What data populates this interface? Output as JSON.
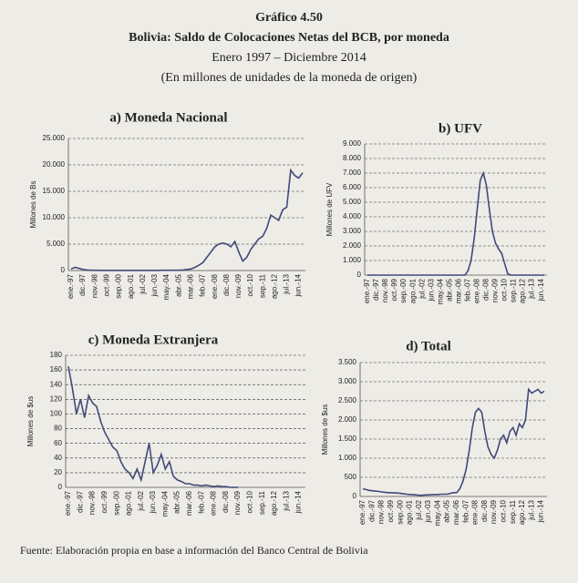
{
  "header": {
    "title": "Gráfico 4.50",
    "subtitle": "Bolivia: Saldo de Colocaciones Netas del BCB, por moneda",
    "period": "Enero 1997 – Diciembre 2014",
    "units": "(En millones de unidades de la moneda de origen)"
  },
  "source": "Fuente: Elaboración propia en base a información del Banco Central de Bolivia",
  "chart_data": [
    {
      "type": "line",
      "title": "a) Moneda Nacional",
      "y_label": "Millones de Bs",
      "color": "#3f4a7a",
      "grid": true,
      "categories": [
        "ene.-97",
        null,
        null,
        "dic.-97",
        null,
        null,
        "nov.-98",
        null,
        null,
        "oct.-99",
        null,
        null,
        "sep.-00",
        null,
        null,
        "ago.-01",
        null,
        null,
        "jul.-02",
        null,
        null,
        "jun.-03",
        null,
        null,
        "may.-04",
        null,
        null,
        "abr.-05",
        null,
        null,
        "mar.-06",
        null,
        null,
        "feb.-07",
        null,
        null,
        "ene.-08",
        null,
        null,
        "dic.-08",
        null,
        null,
        "nov.-09",
        null,
        null,
        "oct.-10",
        null,
        null,
        "sep.-11",
        null,
        null,
        "ago.-12",
        null,
        null,
        "jul.-13",
        null,
        null,
        "jun.-14",
        null
      ],
      "values": [
        300,
        600,
        400,
        200,
        100,
        50,
        50,
        40,
        30,
        30,
        30,
        30,
        30,
        30,
        30,
        30,
        30,
        30,
        30,
        30,
        40,
        40,
        40,
        50,
        50,
        50,
        50,
        50,
        100,
        200,
        300,
        600,
        1000,
        1500,
        2500,
        3500,
        4500,
        5000,
        5200,
        5000,
        4500,
        5500,
        3500,
        1800,
        2500,
        4000,
        5000,
        6000,
        6500,
        8000,
        10500,
        10000,
        9500,
        11500,
        12000,
        19000,
        18000,
        17500,
        18500
      ],
      "ylim": [
        0,
        25000
      ],
      "yticks": [
        0,
        {
          "value": 5000,
          "label": "5.000"
        },
        {
          "value": 10000,
          "label": "10.000"
        },
        {
          "value": 15000,
          "label": "15.000"
        },
        {
          "value": 20000,
          "label": "20.000"
        },
        {
          "value": 25000,
          "label": "25.000"
        }
      ]
    },
    {
      "type": "line",
      "title": "b) UFV",
      "y_label": "Millones de UFV",
      "color": "#3f4a7a",
      "grid": true,
      "categories": [
        "ene.-97",
        null,
        null,
        "dic.-97",
        null,
        null,
        "nov.-98",
        null,
        null,
        "oct.-99",
        null,
        null,
        "sep.-00",
        null,
        null,
        "ago.-01",
        null,
        null,
        "jul.-02",
        null,
        null,
        "jun.-03",
        null,
        null,
        "may.-04",
        null,
        null,
        "abr.-05",
        null,
        null,
        "mar.-06",
        null,
        null,
        "feb.-07",
        null,
        null,
        "ene.-08",
        null,
        null,
        "dic.-08",
        null,
        null,
        "nov.-09",
        null,
        null,
        "oct.-10",
        null,
        null,
        "sep.-11",
        null,
        null,
        "ago.-12",
        null,
        null,
        "jul.-13",
        null,
        null,
        "jun.-14",
        null
      ],
      "values": [
        0,
        0,
        0,
        0,
        0,
        0,
        0,
        0,
        0,
        0,
        0,
        0,
        0,
        0,
        0,
        0,
        0,
        0,
        0,
        0,
        0,
        0,
        0,
        0,
        0,
        0,
        0,
        0,
        0,
        0,
        0,
        0,
        0,
        300,
        1000,
        2500,
        4500,
        6500,
        7000,
        6200,
        4500,
        3000,
        2200,
        1800,
        1500,
        800,
        100,
        0,
        0,
        0,
        0,
        0,
        0,
        0,
        0,
        0,
        0,
        0,
        0
      ],
      "ylim": [
        0,
        9000
      ],
      "yticks": [
        0,
        {
          "value": 1000,
          "label": "1.000"
        },
        {
          "value": 2000,
          "label": "2.000"
        },
        {
          "value": 3000,
          "label": "3.000"
        },
        {
          "value": 4000,
          "label": "4.000"
        },
        {
          "value": 5000,
          "label": "5.000"
        },
        {
          "value": 6000,
          "label": "6.000"
        },
        {
          "value": 7000,
          "label": "7.000"
        },
        {
          "value": 8000,
          "label": "8.000"
        },
        {
          "value": 9000,
          "label": "9.000"
        }
      ]
    },
    {
      "type": "line",
      "title": "c) Moneda Extranjera",
      "y_label": "Millones de $us",
      "color": "#3f4a7a",
      "grid": true,
      "categories": [
        "ene.-97",
        null,
        null,
        "dic.-97",
        null,
        null,
        "nov.-98",
        null,
        null,
        "oct.-99",
        null,
        null,
        "sep.-00",
        null,
        null,
        "ago.-01",
        null,
        null,
        "jul.-02",
        null,
        null,
        "jun.-03",
        null,
        null,
        "may.-04",
        null,
        null,
        "abr.-05",
        null,
        null,
        "mar.-06",
        null,
        null,
        "feb.-07",
        null,
        null,
        "ene.-08",
        null,
        null,
        "dic.-08",
        null,
        null,
        "nov.-09",
        null,
        null,
        "oct.-10",
        null,
        null,
        "sep.-11",
        null,
        null,
        "ago.-12",
        null,
        null,
        "jul.-13",
        null,
        null,
        "jun.-14",
        null
      ],
      "values": [
        165,
        135,
        100,
        120,
        95,
        125,
        115,
        110,
        90,
        75,
        65,
        55,
        50,
        35,
        25,
        20,
        12,
        25,
        10,
        35,
        60,
        20,
        30,
        45,
        25,
        35,
        15,
        10,
        8,
        5,
        5,
        3,
        3,
        2,
        3,
        2,
        1,
        2,
        1,
        1,
        0,
        0,
        0,
        null,
        null,
        null,
        null,
        null,
        null,
        null,
        null,
        null,
        null,
        null,
        null,
        null,
        null,
        null,
        null
      ],
      "ylim": [
        0,
        180
      ],
      "yticks": [
        0,
        20,
        40,
        60,
        80,
        100,
        120,
        140,
        160,
        180
      ]
    },
    {
      "type": "line",
      "title": "d) Total",
      "y_label": "Millones de $us",
      "color": "#3f4a7a",
      "grid": true,
      "categories": [
        "ene.-97",
        null,
        null,
        "dic.-97",
        null,
        null,
        "nov.-98",
        null,
        null,
        "oct.-99",
        null,
        null,
        "sep.-00",
        null,
        null,
        "ago.-01",
        null,
        null,
        "jul.-02",
        null,
        null,
        "jun.-03",
        null,
        null,
        "may.-04",
        null,
        null,
        "abr.-05",
        null,
        null,
        "mar.-06",
        null,
        null,
        "feb.-07",
        null,
        null,
        "ene.-08",
        null,
        null,
        "dic.-08",
        null,
        null,
        "nov.-09",
        null,
        null,
        "oct.-10",
        null,
        null,
        "sep.-11",
        null,
        null,
        "ago.-12",
        null,
        null,
        "jul.-13",
        null,
        null,
        "jun.-14",
        null
      ],
      "values": [
        200,
        180,
        160,
        150,
        140,
        130,
        120,
        110,
        100,
        100,
        90,
        90,
        80,
        70,
        60,
        50,
        50,
        40,
        30,
        30,
        40,
        40,
        50,
        50,
        50,
        60,
        60,
        60,
        80,
        100,
        100,
        200,
        400,
        700,
        1200,
        1800,
        2200,
        2300,
        2200,
        1700,
        1300,
        1100,
        1000,
        1200,
        1500,
        1600,
        1400,
        1700,
        1800,
        1600,
        1900,
        1800,
        2000,
        2800,
        2700,
        2750,
        2800,
        2700,
        2750
      ],
      "ylim": [
        0,
        3500
      ],
      "yticks": [
        0,
        500,
        {
          "value": 1000,
          "label": "1.000"
        },
        {
          "value": 1500,
          "label": "1.500"
        },
        {
          "value": 2000,
          "label": "2.000"
        },
        {
          "value": 2500,
          "label": "2.500"
        },
        {
          "value": 3000,
          "label": "3.000"
        },
        {
          "value": 3500,
          "label": "3.500"
        }
      ]
    }
  ]
}
